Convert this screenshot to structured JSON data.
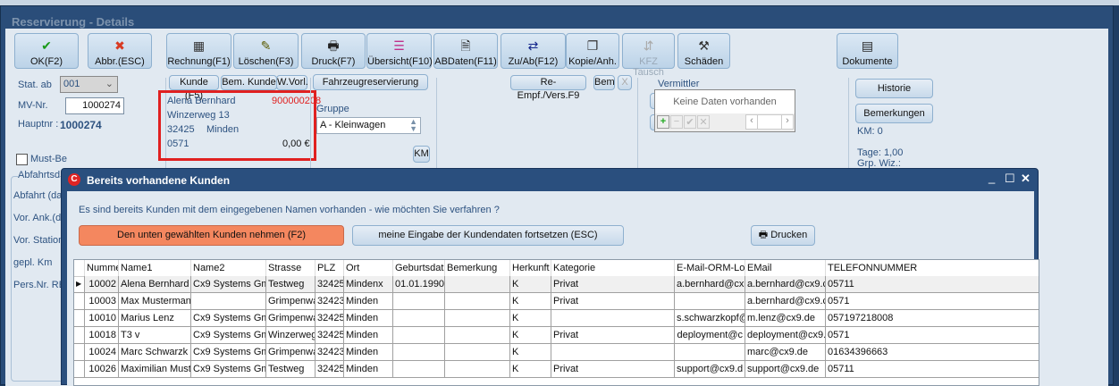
{
  "window": {
    "title": "Reservierung - Details"
  },
  "toolbar": [
    {
      "label": "OK(F2)",
      "icon": "check-icon",
      "glyph": "✔",
      "color": "#1a9a1a"
    },
    {
      "label": "Abbr.(ESC)",
      "icon": "cancel-x-icon",
      "glyph": "✖",
      "color": "#d83a22"
    },
    {
      "label": "Rechnung(F1)",
      "icon": "calculator-icon",
      "glyph": "▦",
      "color": "#333"
    },
    {
      "label": "Löschen(F3)",
      "icon": "eraser-icon",
      "glyph": "✎",
      "color": "#5a5a00"
    },
    {
      "label": "Druck(F7)",
      "icon": "printer-icon",
      "glyph": "🖶",
      "color": "#222"
    },
    {
      "label": "Übersicht(F10)",
      "icon": "overview-icon",
      "glyph": "☰",
      "color": "#c0308a"
    },
    {
      "label": "ABDaten(F11)",
      "icon": "document-icon",
      "glyph": "🗎",
      "color": "#222"
    },
    {
      "label": "Zu/Ab(F12)",
      "icon": "swap-arrows-icon",
      "glyph": "⇄",
      "color": "#12248a"
    },
    {
      "label": "Kopie/Anh.",
      "icon": "copy-attach-icon",
      "glyph": "❐",
      "color": "#333"
    },
    {
      "label": "KFZ Tausch",
      "icon": "car-swap-icon",
      "glyph": "⇵",
      "color": "#aaa",
      "disabled": true
    },
    {
      "label": "Schäden",
      "icon": "damage-icon",
      "glyph": "⚒",
      "color": "#333"
    },
    {
      "label": "Dokumente",
      "icon": "documents-icon",
      "glyph": "▤",
      "color": "#222"
    }
  ],
  "left": {
    "stat_ab_label": "Stat. ab",
    "stat_ab_value": "001",
    "mv_label": "MV-Nr.",
    "mv_value": "1000274",
    "hauptnr_label": "Hauptnr :",
    "hauptnr_value": "1000274",
    "must_be": "Must-Be",
    "abfahrt_group": "Abfahrtsd",
    "fields": [
      "Abfahrt (da",
      "Vor. Ank.(d",
      "Vor. Station",
      "gepl. Km",
      "Pers.Nr. RE"
    ]
  },
  "customer": {
    "tabs": [
      "Kunde (F5)",
      "Bem. Kunde",
      "W.Vorl."
    ],
    "name": "Alena Bernhard",
    "number": "900000208",
    "street": "Winzerweg 13",
    "zip": "32425",
    "city": "Minden",
    "phone": "0571",
    "balance": "0,00 €"
  },
  "vehicle": {
    "tab": "Fahrzeugreservierung",
    "gruppe_label": "Gruppe",
    "gruppe_value": "A - Kleinwagen",
    "km_button": "KM"
  },
  "recipient": {
    "tabs": [
      "Re-Empf./Vers.F9",
      "Bem"
    ],
    "close": "X"
  },
  "vermittler": {
    "label": "Vermittler",
    "plus": "+",
    "minus": "-",
    "empty": "Keine Daten vorhanden"
  },
  "right": {
    "historie": "Historie",
    "bemerkungen": "Bemerkungen",
    "km": "KM: 0",
    "tage": "Tage: 1,00",
    "grp": "Grp. Wiz.:"
  },
  "dialog": {
    "title": "Bereits vorhandene Kunden",
    "message": "Es sind bereits Kunden mit dem eingegebenen Namen vorhanden - wie möchten Sie verfahren ?",
    "take_button": "Den unten gewählten Kunden nehmen (F2)",
    "continue_button": "meine Eingabe der Kundendaten fortsetzen (ESC)",
    "print_button": "Drucken",
    "accent": "#f4875f"
  },
  "grid": {
    "columns": [
      "Nummer",
      "Name1",
      "Name2",
      "Strasse",
      "PLZ",
      "Ort",
      "Geburtsdat",
      "Bemerkung",
      "Herkunft",
      "Kategorie",
      "E-Mail-ORM-Lo",
      "EMail",
      "TELEFONNUMMER"
    ],
    "rows": [
      [
        "10002",
        "Alena Bernhard",
        "Cx9 Systems Gm",
        "Testweg",
        "32425",
        "Mindenx",
        "01.01.1990",
        "",
        "K",
        "Privat",
        "a.bernhard@cx",
        "a.bernhard@cx9.c",
        "05711"
      ],
      [
        "10003",
        "Max Musterman",
        "",
        "Grimpenwa",
        "32423",
        "Minden",
        "",
        "",
        "K",
        "Privat",
        "",
        "a.bernhard@cx9.c",
        "0571"
      ],
      [
        "10010",
        "Marius Lenz",
        "Cx9 Systems Gm",
        "Grimpenwa",
        "32425",
        "Minden",
        "",
        "",
        "K",
        "",
        "s.schwarzkopf@",
        "m.lenz@cx9.de",
        "057197218008"
      ],
      [
        "10018",
        "T3 v",
        "Cx9 Systems Gm",
        "Winzerweg",
        "32425",
        "Minden",
        "",
        "",
        "K",
        "Privat",
        "deployment@c",
        "deployment@cx9.",
        "0571"
      ],
      [
        "10024",
        "Marc Schwarzk",
        "Cx9 Systems Gm",
        "Grimpenwa",
        "32423",
        "Minden",
        "",
        "",
        "K",
        "",
        "",
        "marc@cx9.de",
        "01634396663"
      ],
      [
        "10026",
        "Maximilian Must",
        "Cx9 Systems Gm",
        "Testweg",
        "32425",
        "Minden",
        "",
        "",
        "K",
        "Privat",
        "support@cx9.d",
        "support@cx9.de",
        "05711"
      ]
    ]
  }
}
